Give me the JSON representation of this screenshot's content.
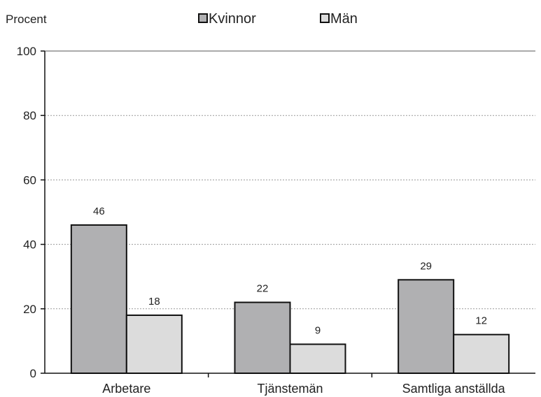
{
  "chart_data": {
    "type": "bar",
    "ylabel": "Procent",
    "categories": [
      "Arbetare",
      "Tjänstemän",
      "Samtliga anställda"
    ],
    "series": [
      {
        "name": "Kvinnor",
        "values": [
          46,
          22,
          29
        ],
        "color": "#b0b0b2"
      },
      {
        "name": "Män",
        "values": [
          18,
          9,
          12
        ],
        "color": "#dcdcdc"
      }
    ],
    "ylim": [
      0,
      100
    ],
    "yticks": [
      0,
      20,
      40,
      60,
      80,
      100
    ],
    "grid": true,
    "legend_position": "top",
    "data_labels": true
  }
}
